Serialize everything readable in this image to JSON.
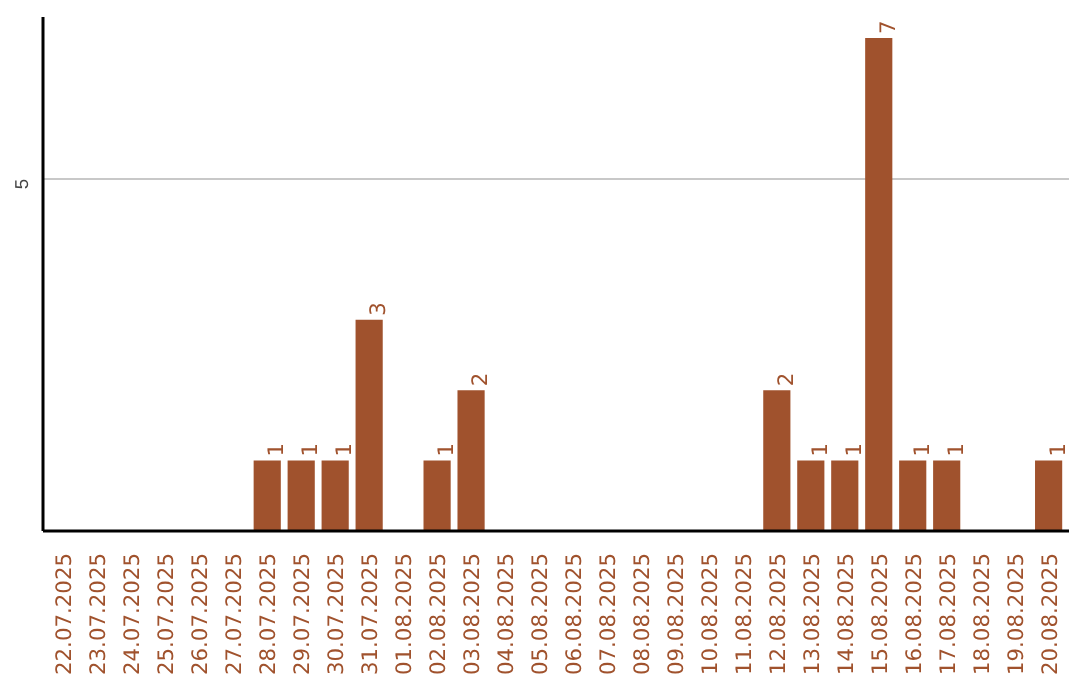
{
  "chart_data": {
    "type": "bar",
    "categories": [
      "22.07.2025",
      "23.07.2025",
      "24.07.2025",
      "25.07.2025",
      "26.07.2025",
      "27.07.2025",
      "28.07.2025",
      "29.07.2025",
      "30.07.2025",
      "31.07.2025",
      "01.08.2025",
      "02.08.2025",
      "03.08.2025",
      "04.08.2025",
      "05.08.2025",
      "06.08.2025",
      "07.08.2025",
      "08.08.2025",
      "09.08.2025",
      "10.08.2025",
      "11.08.2025",
      "12.08.2025",
      "13.08.2025",
      "14.08.2025",
      "15.08.2025",
      "16.08.2025",
      "17.08.2025",
      "18.08.2025",
      "19.08.2025",
      "20.08.2025"
    ],
    "values": [
      0,
      0,
      0,
      0,
      0,
      0,
      1,
      1,
      1,
      3,
      0,
      1,
      2,
      0,
      0,
      0,
      0,
      0,
      0,
      0,
      0,
      2,
      1,
      1,
      7,
      1,
      1,
      0,
      0,
      1
    ],
    "value_labels": [
      null,
      null,
      null,
      null,
      null,
      null,
      "1",
      "1",
      "1",
      "3",
      null,
      "1",
      "2",
      null,
      null,
      null,
      null,
      null,
      null,
      null,
      null,
      "2",
      "1",
      "1",
      "7",
      "1",
      "1",
      null,
      null,
      "1"
    ],
    "color": "#a0522d",
    "ylim": [
      0,
      7.3
    ],
    "yticks": [
      5
    ],
    "grid": "y"
  }
}
